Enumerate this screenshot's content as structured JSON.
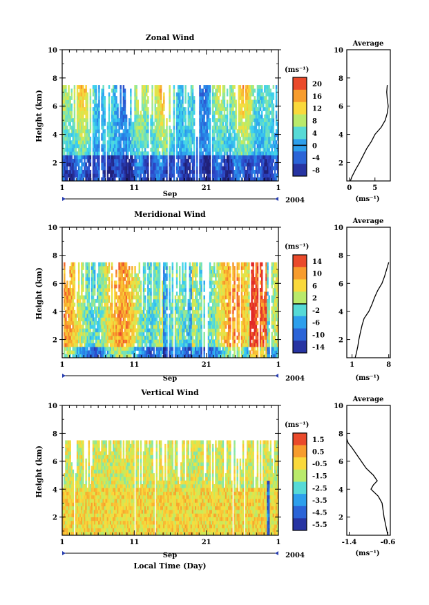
{
  "figure": {
    "bottom_xlabel": "Local Time (Day)",
    "colors": {
      "hot": "#e8332a",
      "warm": "#f8c237",
      "cool": "#36c3e8",
      "cold": "#2a3fb0"
    }
  },
  "chart_data": [
    {
      "type": "heatmap",
      "title": "Zonal Wind",
      "ylabel": "Height (km)",
      "ylim": [
        0.7,
        10
      ],
      "yticks": [
        "2",
        "4",
        "6",
        "8",
        "10"
      ],
      "xlim_days": [
        1,
        31
      ],
      "xticks": [
        "1",
        "11",
        "21",
        "1"
      ],
      "month_label": "Sep",
      "year_label": "2004",
      "data_top_km": 7.5,
      "colorbar": {
        "unit_label": "(ms⁻¹)",
        "ticks": [
          "20",
          "16",
          "12",
          "8",
          "4",
          "0",
          "-4",
          "-8"
        ],
        "range": [
          -10,
          22
        ],
        "marked_level": 0
      },
      "average_profile": {
        "title": "Average",
        "xlabel": "(ms⁻¹)",
        "xticks": [
          "0",
          "5"
        ],
        "xlim": [
          -0.5,
          8
        ],
        "ylim": [
          0.7,
          10
        ],
        "yticks": [
          "2",
          "4",
          "6",
          "8"
        ],
        "height_km": [
          0.7,
          1.0,
          1.5,
          2.0,
          2.5,
          3.0,
          3.5,
          4.0,
          4.5,
          5.0,
          5.5,
          6.0,
          6.5,
          7.0,
          7.5
        ],
        "value": [
          0.2,
          0.5,
          1.2,
          2.0,
          2.7,
          3.4,
          4.3,
          5.0,
          6.2,
          7.0,
          7.4,
          7.6,
          7.4,
          7.3,
          7.4
        ]
      }
    },
    {
      "type": "heatmap",
      "title": "Meridional Wind",
      "ylabel": "Height (km)",
      "ylim": [
        0.7,
        10
      ],
      "yticks": [
        "2",
        "4",
        "6",
        "8",
        "10"
      ],
      "xlim_days": [
        1,
        31
      ],
      "xticks": [
        "1",
        "11",
        "21",
        "1"
      ],
      "month_label": "Sep",
      "year_label": "2004",
      "data_top_km": 7.5,
      "colorbar": {
        "unit_label": "(ms⁻¹)",
        "ticks": [
          "14",
          "10",
          "6",
          "2",
          "-2",
          "-6",
          "-10",
          "-14"
        ],
        "range": [
          -16,
          16
        ],
        "marked_level": 0
      },
      "average_profile": {
        "title": "Average",
        "xlabel": "(ms⁻¹)",
        "xticks": [
          "1",
          "8"
        ],
        "xlim": [
          0,
          8.3
        ],
        "ylim": [
          0.7,
          10
        ],
        "yticks": [
          "2",
          "4",
          "6",
          "8"
        ],
        "height_km": [
          0.7,
          1.0,
          1.5,
          2.0,
          2.5,
          3.0,
          3.5,
          4.0,
          4.5,
          5.0,
          5.5,
          6.0,
          6.5,
          7.0,
          7.5
        ],
        "value": [
          1.6,
          1.8,
          2.1,
          2.3,
          2.6,
          2.9,
          3.3,
          4.2,
          4.8,
          5.3,
          5.9,
          6.7,
          7.2,
          7.6,
          8.0
        ]
      }
    },
    {
      "type": "heatmap",
      "title": "Vertical Wind",
      "ylabel": "Height (km)",
      "ylim": [
        0.7,
        10
      ],
      "yticks": [
        "2",
        "4",
        "6",
        "8",
        "10"
      ],
      "xlim_days": [
        1,
        31
      ],
      "xticks": [
        "1",
        "11",
        "21",
        "1"
      ],
      "month_label": "Sep",
      "year_label": "2004",
      "data_top_km": 7.5,
      "colorbar": {
        "unit_label": "(ms⁻¹)",
        "ticks": [
          "1.5",
          "0.5",
          "-0.5",
          "-1.5",
          "-2.5",
          "-3.5",
          "-4.5",
          "-5.5"
        ],
        "range": [
          -6.3,
          2.2
        ],
        "marked_level": null
      },
      "average_profile": {
        "title": "Average",
        "xlabel": "(ms⁻¹)",
        "xticks": [
          "-1.4",
          "-0.6"
        ],
        "xlim": [
          -1.45,
          -0.55
        ],
        "ylim": [
          0.7,
          10
        ],
        "yticks": [
          "2",
          "4",
          "6",
          "8"
        ],
        "height_km": [
          0.7,
          1.0,
          1.5,
          2.0,
          2.5,
          3.0,
          3.5,
          4.0,
          4.3,
          4.6,
          5.0,
          5.5,
          6.0,
          6.5,
          7.0,
          7.3,
          7.6
        ],
        "value": [
          -0.6,
          -0.62,
          -0.65,
          -0.68,
          -0.7,
          -0.72,
          -0.8,
          -0.95,
          -0.9,
          -0.82,
          -0.9,
          -1.05,
          -1.15,
          -1.25,
          -1.35,
          -1.42,
          -1.45
        ]
      }
    }
  ]
}
